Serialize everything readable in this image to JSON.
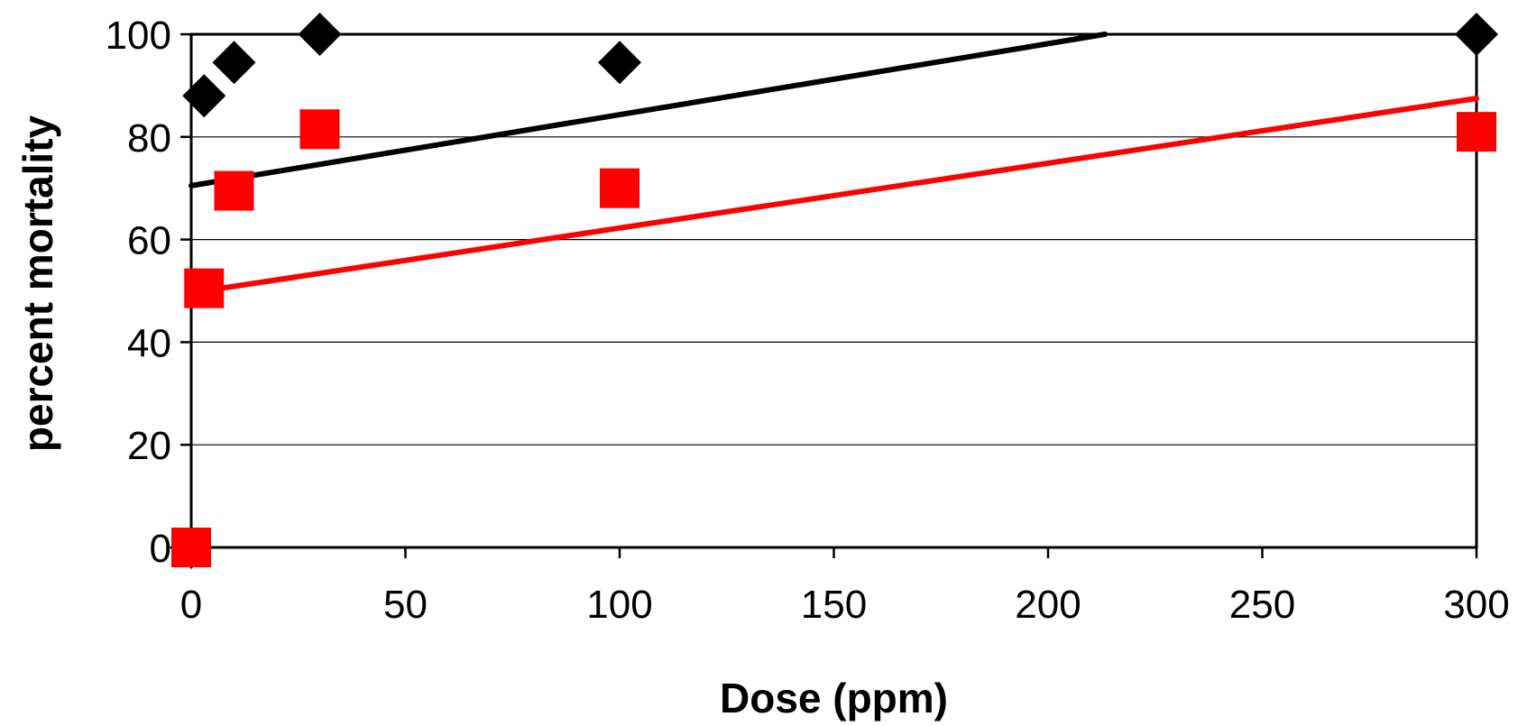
{
  "chart_data": {
    "type": "scatter",
    "title": "",
    "xlabel": "Dose (ppm)",
    "ylabel": "percent mortality",
    "xlim": [
      0,
      300
    ],
    "ylim": [
      0,
      100
    ],
    "xticks": [
      0,
      50,
      100,
      150,
      200,
      250,
      300
    ],
    "yticks": [
      0,
      20,
      40,
      60,
      80,
      100
    ],
    "grid": "horizontal",
    "legend": "none",
    "series": [
      {
        "marker": "diamond",
        "color": "#000000",
        "points": [
          [
            0,
            0
          ],
          [
            3,
            88
          ],
          [
            10,
            94.5
          ],
          [
            30,
            100
          ],
          [
            100,
            94.5
          ],
          [
            300,
            100
          ]
        ],
        "trendline": {
          "type": "linear",
          "x": [
            0,
            300
          ],
          "y": [
            70.5,
            112
          ],
          "clip_to_axes": true
        }
      },
      {
        "marker": "square",
        "color": "#ff0000",
        "points": [
          [
            0,
            0
          ],
          [
            3,
            50.5
          ],
          [
            10,
            69.5
          ],
          [
            30,
            81.5
          ],
          [
            100,
            70
          ],
          [
            300,
            81
          ]
        ],
        "trendline": {
          "type": "linear",
          "x": [
            3,
            300
          ],
          "y": [
            50,
            87.5
          ],
          "clip_to_axes": true
        }
      }
    ]
  }
}
